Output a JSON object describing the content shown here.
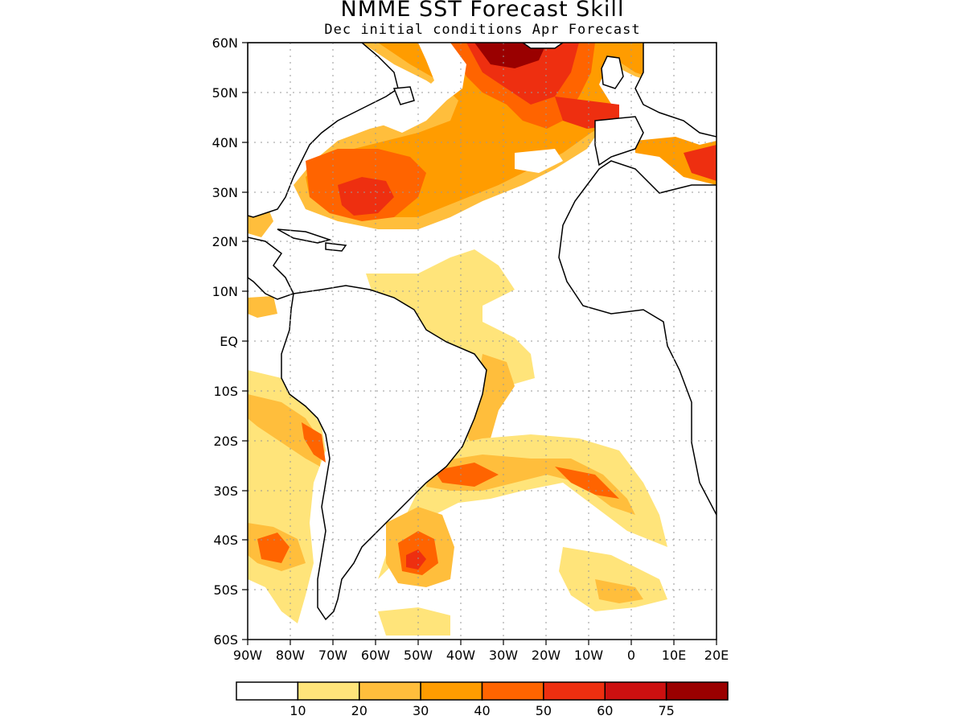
{
  "title": "NMME SST Forecast Skill",
  "subtitle": "Dec initial conditions  Apr Forecast",
  "lat_labels": [
    "60N",
    "50N",
    "40N",
    "30N",
    "20N",
    "10N",
    "EQ",
    "10S",
    "20S",
    "30S",
    "40S",
    "50S",
    "60S"
  ],
  "lon_labels": [
    "90W",
    "80W",
    "70W",
    "60W",
    "50W",
    "40W",
    "30W",
    "20W",
    "10W",
    "0",
    "10E",
    "20E"
  ],
  "colorbar": {
    "colors": [
      "#ffffff",
      "#ffe47a",
      "#ffbe3c",
      "#ff9c00",
      "#ff6400",
      "#ee2f10",
      "#cc1010",
      "#9a0000"
    ],
    "labels": [
      "10",
      "20",
      "30",
      "40",
      "50",
      "60",
      "75"
    ]
  }
}
